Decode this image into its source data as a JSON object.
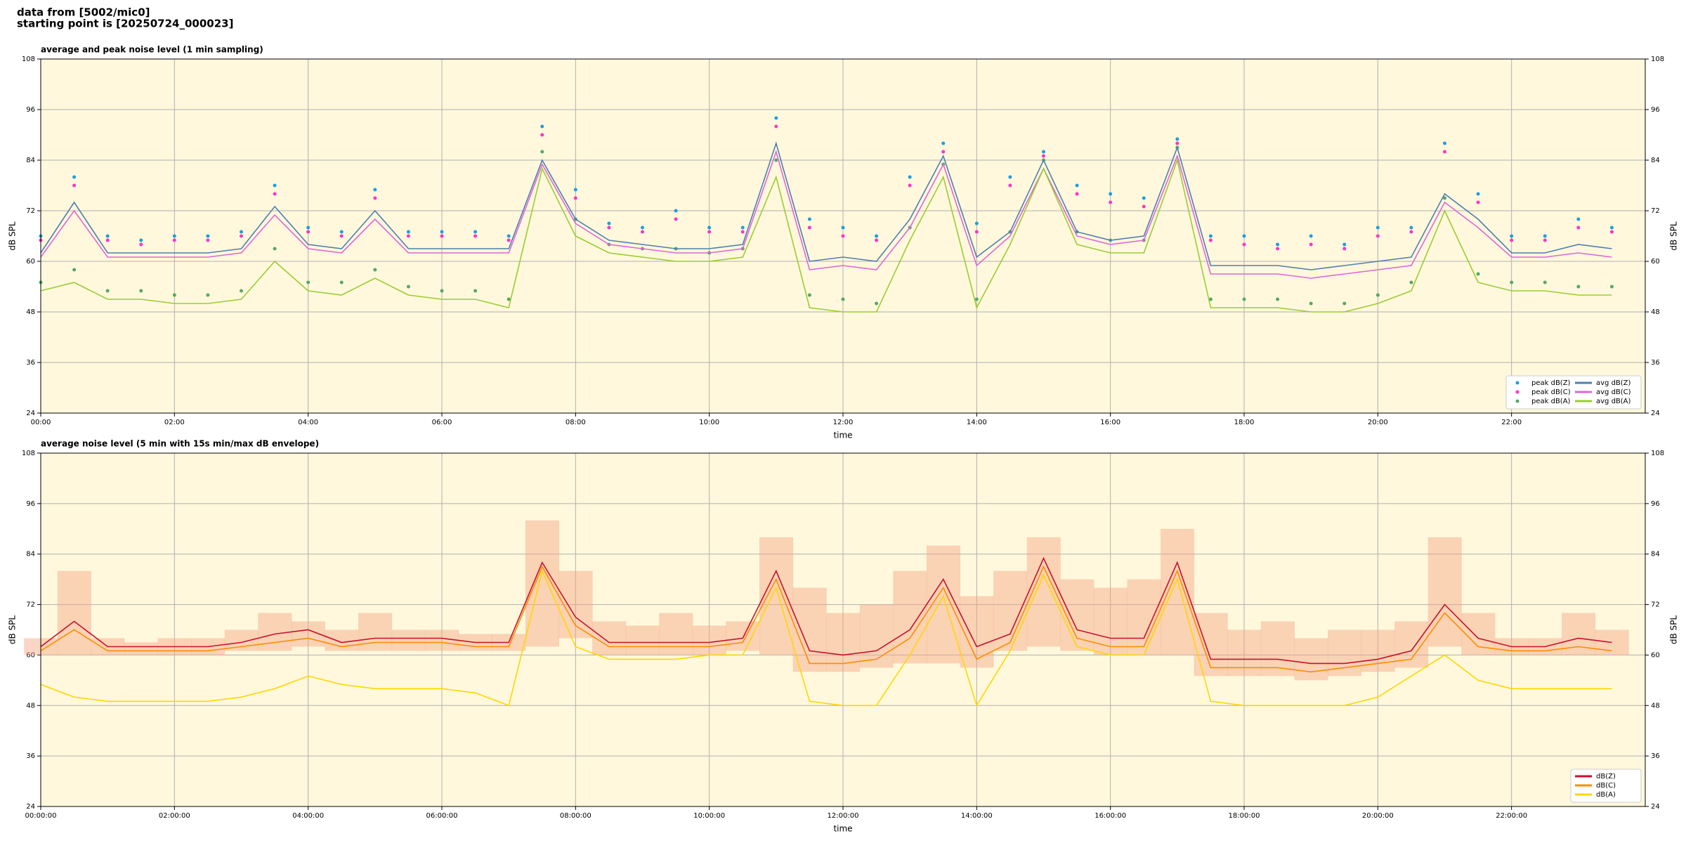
{
  "header": {
    "line1": "data from [5002/mic0]",
    "line2": "starting point is [20250724_000023]"
  },
  "chart_data": [
    {
      "type": "line",
      "title": "average and peak noise level (1 min sampling)",
      "xlabel": "time",
      "ylabel": "dB SPL",
      "xlim": [
        0,
        24
      ],
      "ylim": [
        24,
        108
      ],
      "grid": true,
      "legend": "lower right",
      "legend_columns": 2,
      "background": "#fff8dc",
      "yticks": [
        24,
        36,
        48,
        60,
        72,
        84,
        96,
        108
      ],
      "xticks": [
        {
          "value": 0,
          "label": "00:00"
        },
        {
          "value": 2,
          "label": "02:00"
        },
        {
          "value": 4,
          "label": "04:00"
        },
        {
          "value": 6,
          "label": "06:00"
        },
        {
          "value": 8,
          "label": "08:00"
        },
        {
          "value": 10,
          "label": "10:00"
        },
        {
          "value": 12,
          "label": "12:00"
        },
        {
          "value": 14,
          "label": "14:00"
        },
        {
          "value": 16,
          "label": "16:00"
        },
        {
          "value": 18,
          "label": "18:00"
        },
        {
          "value": 20,
          "label": "20:00"
        },
        {
          "value": 22,
          "label": "22:00"
        }
      ],
      "x": [
        0,
        0.5,
        1,
        1.5,
        2,
        2.5,
        3,
        3.5,
        4,
        4.5,
        5,
        5.5,
        6,
        6.5,
        7,
        7.5,
        8,
        8.5,
        9,
        9.5,
        10,
        10.5,
        11,
        11.5,
        12,
        12.5,
        13,
        13.5,
        14,
        14.5,
        15,
        15.5,
        16,
        16.5,
        17,
        17.5,
        18,
        18.5,
        19,
        19.5,
        20,
        20.5,
        21,
        21.5,
        22,
        22.5,
        23,
        23.5
      ],
      "series": [
        {
          "name": "peak dB(Z)",
          "type": "scatter",
          "color": "#1f9ee0",
          "values": [
            66,
            80,
            66,
            65,
            66,
            66,
            67,
            78,
            68,
            67,
            77,
            67,
            67,
            67,
            66,
            92,
            77,
            69,
            68,
            72,
            68,
            68,
            94,
            70,
            68,
            66,
            80,
            88,
            69,
            80,
            86,
            78,
            76,
            75,
            89,
            66,
            66,
            64,
            66,
            64,
            68,
            68,
            88,
            76,
            66,
            66,
            70,
            68
          ]
        },
        {
          "name": "peak dB(C)",
          "type": "scatter",
          "color": "#ff33cc",
          "values": [
            65,
            78,
            65,
            64,
            65,
            65,
            66,
            76,
            67,
            66,
            75,
            66,
            66,
            66,
            65,
            90,
            75,
            68,
            67,
            70,
            67,
            67,
            92,
            68,
            66,
            65,
            78,
            86,
            67,
            78,
            85,
            76,
            74,
            73,
            88,
            65,
            64,
            63,
            64,
            63,
            66,
            67,
            86,
            74,
            65,
            65,
            68,
            67
          ]
        },
        {
          "name": "peak dB(A)",
          "type": "scatter",
          "color": "#55a868",
          "values": [
            55,
            58,
            53,
            53,
            52,
            52,
            53,
            63,
            55,
            55,
            58,
            54,
            53,
            53,
            51,
            86,
            70,
            64,
            63,
            63,
            62,
            63,
            84,
            52,
            51,
            50,
            68,
            83,
            51,
            67,
            84,
            67,
            65,
            65,
            87,
            51,
            51,
            51,
            50,
            50,
            52,
            55,
            75,
            57,
            55,
            55,
            54,
            54
          ]
        },
        {
          "name": "avg dB(Z)",
          "type": "line",
          "color": "#4f7fb0",
          "values": [
            62,
            74,
            62,
            62,
            62,
            62,
            63,
            73,
            64,
            63,
            72,
            63,
            63,
            63,
            63,
            84,
            70,
            65,
            64,
            63,
            63,
            64,
            88,
            60,
            61,
            60,
            70,
            85,
            61,
            67,
            84,
            67,
            65,
            66,
            87,
            59,
            59,
            59,
            58,
            59,
            60,
            61,
            76,
            70,
            62,
            62,
            64,
            63
          ]
        },
        {
          "name": "avg dB(C)",
          "type": "line",
          "color": "#e066d9",
          "values": [
            61,
            72,
            61,
            61,
            61,
            61,
            62,
            71,
            63,
            62,
            70,
            62,
            62,
            62,
            62,
            83,
            69,
            64,
            63,
            62,
            62,
            63,
            86,
            58,
            59,
            58,
            68,
            83,
            59,
            66,
            82,
            66,
            64,
            65,
            85,
            57,
            57,
            57,
            56,
            57,
            58,
            59,
            74,
            68,
            61,
            61,
            62,
            61
          ]
        },
        {
          "name": "avg dB(A)",
          "type": "line",
          "color": "#9acd32",
          "values": [
            53,
            55,
            51,
            51,
            50,
            50,
            51,
            60,
            53,
            52,
            56,
            52,
            51,
            51,
            49,
            82,
            66,
            62,
            61,
            60,
            60,
            61,
            80,
            49,
            48,
            48,
            65,
            80,
            49,
            64,
            82,
            64,
            62,
            62,
            84,
            49,
            49,
            49,
            48,
            48,
            50,
            53,
            72,
            55,
            53,
            53,
            52,
            52
          ]
        }
      ]
    },
    {
      "type": "line",
      "title": "average noise level (5 min with 15s min/max dB envelope)",
      "xlabel": "time",
      "ylabel": "dB SPL",
      "xlim": [
        0,
        24
      ],
      "ylim": [
        24,
        108
      ],
      "grid": true,
      "legend": "lower right",
      "legend_columns": 1,
      "background": "#fff8dc",
      "yticks": [
        24,
        36,
        48,
        60,
        72,
        84,
        96,
        108
      ],
      "xticks": [
        {
          "value": 0,
          "label": "00:00:00"
        },
        {
          "value": 2,
          "label": "02:00:00"
        },
        {
          "value": 4,
          "label": "04:00:00"
        },
        {
          "value": 6,
          "label": "06:00:00"
        },
        {
          "value": 8,
          "label": "08:00:00"
        },
        {
          "value": 10,
          "label": "10:00:00"
        },
        {
          "value": 12,
          "label": "12:00:00"
        },
        {
          "value": 14,
          "label": "14:00:00"
        },
        {
          "value": 16,
          "label": "16:00:00"
        },
        {
          "value": 18,
          "label": "18:00:00"
        },
        {
          "value": 20,
          "label": "20:00:00"
        },
        {
          "value": 22,
          "label": "22:00:00"
        }
      ],
      "x": [
        0,
        0.5,
        1,
        1.5,
        2,
        2.5,
        3,
        3.5,
        4,
        4.5,
        5,
        5.5,
        6,
        6.5,
        7,
        7.5,
        8,
        8.5,
        9,
        9.5,
        10,
        10.5,
        11,
        11.5,
        12,
        12.5,
        13,
        13.5,
        14,
        14.5,
        15,
        15.5,
        16,
        16.5,
        17,
        17.5,
        18,
        18.5,
        19,
        19.5,
        20,
        20.5,
        21,
        21.5,
        22,
        22.5,
        23,
        23.5
      ],
      "envelope": {
        "color": "#f4a582",
        "upper": [
          64,
          80,
          64,
          63,
          64,
          64,
          66,
          70,
          68,
          66,
          70,
          66,
          66,
          65,
          65,
          92,
          80,
          68,
          67,
          70,
          67,
          68,
          88,
          76,
          70,
          72,
          80,
          86,
          74,
          80,
          88,
          78,
          76,
          78,
          90,
          70,
          66,
          68,
          64,
          66,
          66,
          68,
          88,
          70,
          64,
          64,
          70,
          66
        ],
        "lower": [
          60,
          60,
          60,
          60,
          60,
          60,
          61,
          61,
          62,
          61,
          61,
          61,
          61,
          61,
          61,
          62,
          64,
          60,
          60,
          60,
          60,
          61,
          60,
          56,
          56,
          57,
          58,
          58,
          57,
          61,
          62,
          61,
          60,
          60,
          60,
          55,
          55,
          55,
          54,
          55,
          56,
          57,
          62,
          60,
          60,
          60,
          60,
          60
        ]
      },
      "series": [
        {
          "name": "dB(Z)",
          "type": "line",
          "color": "#c8102e",
          "values": [
            62,
            68,
            62,
            62,
            62,
            62,
            63,
            65,
            66,
            63,
            64,
            64,
            64,
            63,
            63,
            82,
            69,
            63,
            63,
            63,
            63,
            64,
            80,
            61,
            60,
            61,
            66,
            78,
            62,
            65,
            83,
            66,
            64,
            64,
            82,
            59,
            59,
            59,
            58,
            58,
            59,
            61,
            72,
            64,
            62,
            62,
            64,
            63
          ]
        },
        {
          "name": "dB(C)",
          "type": "line",
          "color": "#ff8c00",
          "values": [
            61,
            66,
            61,
            61,
            61,
            61,
            62,
            63,
            64,
            62,
            63,
            63,
            63,
            62,
            62,
            81,
            67,
            62,
            62,
            62,
            62,
            63,
            78,
            58,
            58,
            59,
            64,
            76,
            59,
            63,
            81,
            64,
            62,
            62,
            80,
            57,
            57,
            57,
            56,
            57,
            58,
            59,
            70,
            62,
            61,
            61,
            62,
            61
          ]
        },
        {
          "name": "dB(A)",
          "type": "line",
          "color": "#ffd700",
          "values": [
            53,
            50,
            49,
            49,
            49,
            49,
            50,
            52,
            55,
            53,
            52,
            52,
            52,
            51,
            48,
            80,
            62,
            59,
            59,
            59,
            60,
            60,
            76,
            49,
            48,
            48,
            60,
            74,
            48,
            61,
            79,
            62,
            60,
            60,
            78,
            49,
            48,
            48,
            48,
            48,
            50,
            55,
            60,
            54,
            52,
            52,
            52,
            52
          ]
        }
      ]
    }
  ]
}
